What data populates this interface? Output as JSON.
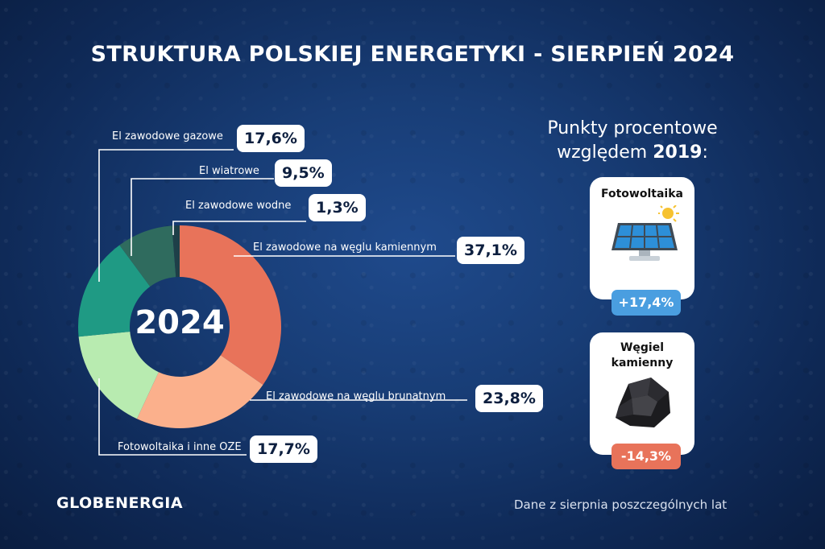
{
  "title": "STRUKTURA POLSKIEJ ENERGETYKI - SIERPIEŃ 2024",
  "center_label": "2024",
  "chart_data": {
    "type": "pie",
    "title": "STRUKTURA POLSKIEJ ENERGETYKI - SIERPIEŃ 2024",
    "center_label": "2024",
    "slices": [
      {
        "label": "El zawodowe na węglu kamiennym",
        "value": 37.1,
        "display": "37,1%",
        "color": "#e8735a"
      },
      {
        "label": "El zawodowe na węglu brunatnym",
        "value": 23.8,
        "display": "23,8%",
        "color": "#fbb08c"
      },
      {
        "label": "Fotowoltaika i inne OZE",
        "value": 17.7,
        "display": "17,7%",
        "color": "#b8ebb0"
      },
      {
        "label": "El zawodowe gazowe",
        "value": 17.6,
        "display": "17,6%",
        "color": "#1f9a84"
      },
      {
        "label": "El wiatrowe",
        "value": 9.5,
        "display": "9,5%",
        "color": "#2f6b5e"
      },
      {
        "label": "El zawodowe wodne",
        "value": 1.3,
        "display": "1,3%",
        "color": "#1e3f48"
      }
    ]
  },
  "comparison": {
    "heading_line1": "Punkty procentowe",
    "heading_line2_prefix": "względem ",
    "heading_year": "2019",
    "heading_suffix": ":",
    "cards": [
      {
        "name": "Fotowoltaika",
        "delta": "+17,4%",
        "color": "#4a9ee0",
        "icon": "solar-panel-icon"
      },
      {
        "name_line1": "Węgiel",
        "name_line2": "kamienny",
        "delta": "-14,3%",
        "color": "#e8735a",
        "icon": "coal-icon"
      }
    ]
  },
  "logo": "GLOBENERGIA",
  "footnote": "Dane z sierpnia poszczególnych lat"
}
